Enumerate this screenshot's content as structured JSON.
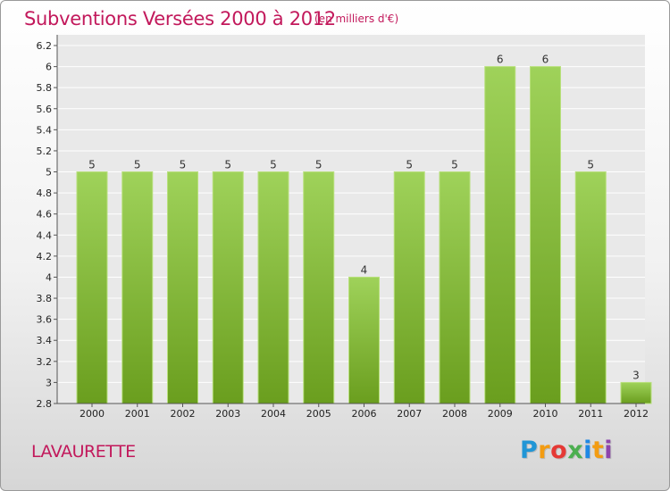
{
  "title": "Subventions Versées 2000 à 2012",
  "subtitle": "(en milliers d'€)",
  "commune": "LAVAURETTE",
  "logo": {
    "letters": [
      "P",
      "r",
      "o",
      "x",
      "i",
      "t",
      "i"
    ],
    "colors": [
      "#2196d6",
      "#f39c12",
      "#e53935",
      "#4caf50",
      "#1e88e5",
      "#f39c12",
      "#8e44ad"
    ]
  },
  "chart_data": {
    "type": "bar",
    "categories": [
      "2000",
      "2001",
      "2002",
      "2003",
      "2004",
      "2005",
      "2006",
      "2007",
      "2008",
      "2009",
      "2010",
      "2011",
      "2012"
    ],
    "values": [
      5,
      5,
      5,
      5,
      5,
      5,
      4,
      5,
      5,
      6,
      6,
      5,
      3
    ],
    "ylim": [
      2.8,
      6.2
    ],
    "yticks": [
      "2.8",
      "3",
      "3.2",
      "3.4",
      "3.6",
      "3.8",
      "4",
      "4.2",
      "4.4",
      "4.6",
      "4.8",
      "5",
      "5.2",
      "5.4",
      "5.6",
      "5.8",
      "6",
      "6.2"
    ],
    "grid": true,
    "bar_color": "#8cc63f"
  }
}
